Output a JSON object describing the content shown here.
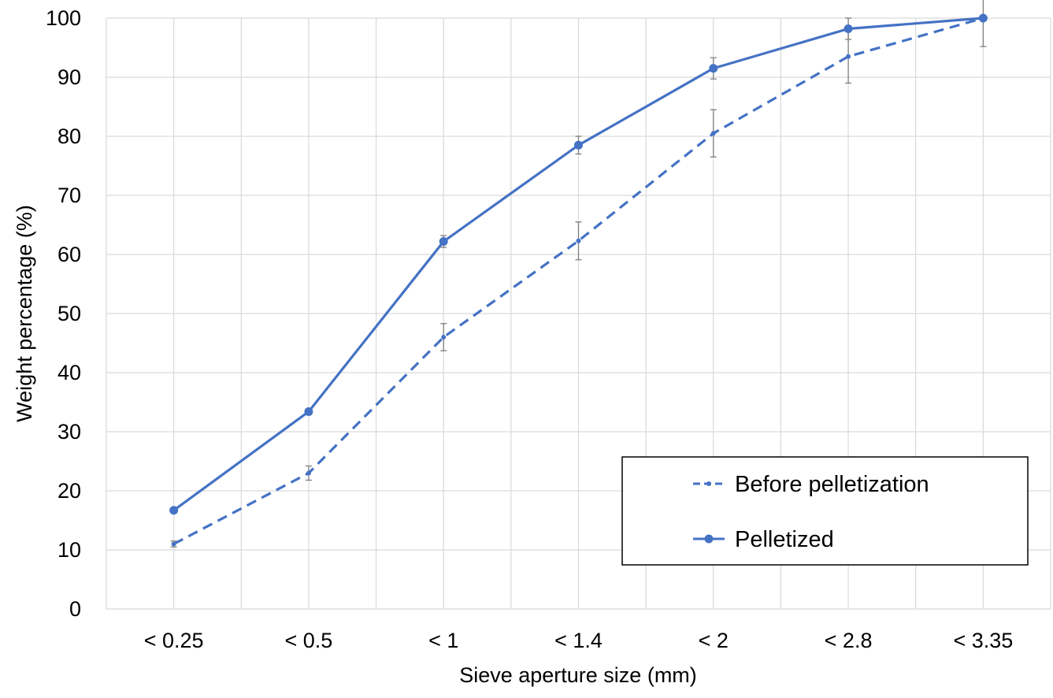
{
  "chart_data": {
    "type": "line",
    "categories": [
      "< 0.25",
      "< 0.5",
      "< 1",
      "< 1.4",
      "< 2",
      "< 2.8",
      "< 3.35"
    ],
    "xlabel": "Sieve aperture size (mm)",
    "ylabel": "Weight  percentage (%)",
    "ylim": [
      0,
      100
    ],
    "yticks": [
      0,
      10,
      20,
      30,
      40,
      50,
      60,
      70,
      80,
      90,
      100
    ],
    "grid": true,
    "legend_position": "bottom-right",
    "series": [
      {
        "name": "Before pelletization",
        "style": "dashed",
        "marker": "small-circle",
        "color": "#4472C4",
        "values": [
          11,
          23,
          46,
          62.3,
          80.5,
          93.5,
          100
        ],
        "error": [
          0.5,
          1.2,
          2.3,
          3.2,
          4.0,
          4.5,
          4.8
        ]
      },
      {
        "name": "Pelletized",
        "style": "solid",
        "marker": "circle",
        "color": "#4472C4",
        "values": [
          16.7,
          33.4,
          62.2,
          78.5,
          91.5,
          98.2,
          100
        ],
        "error": [
          0.3,
          0.5,
          1.0,
          1.5,
          1.8,
          1.8,
          0.3
        ]
      }
    ]
  }
}
